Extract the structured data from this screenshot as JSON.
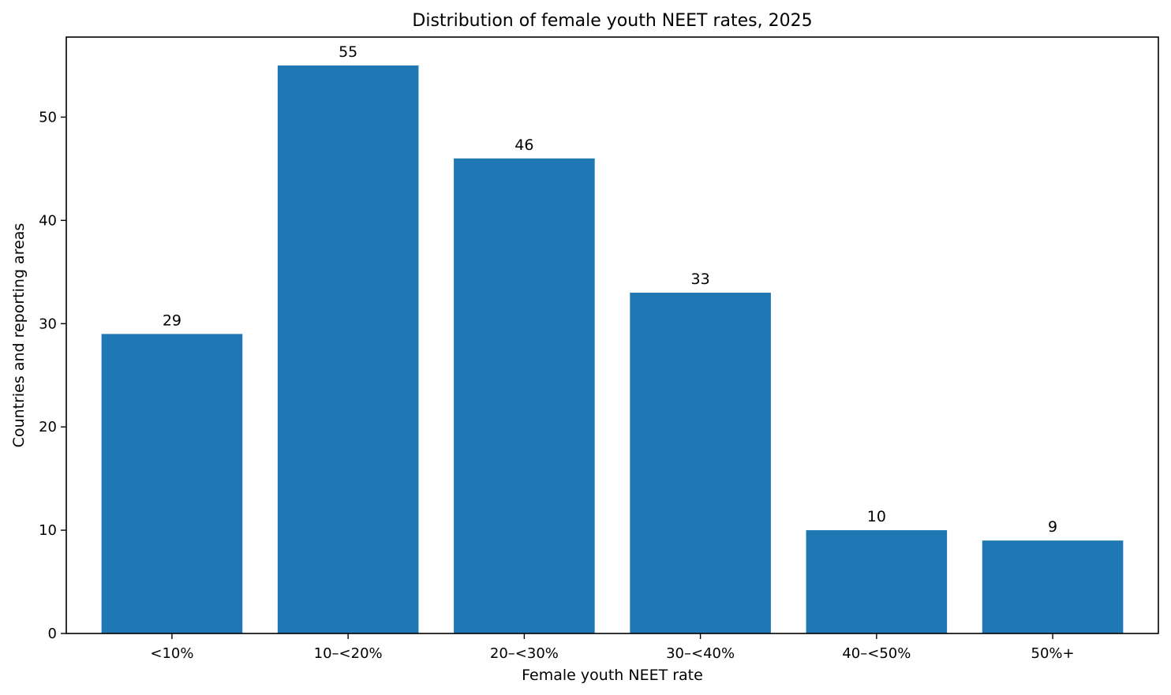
{
  "chart_data": {
    "type": "bar",
    "title": "Distribution of female youth NEET rates, 2025",
    "xlabel": "Female youth NEET rate",
    "ylabel": "Countries and reporting areas",
    "categories": [
      "<10%",
      "10–<20%",
      "20–<30%",
      "30–<40%",
      "40–<50%",
      "50%+"
    ],
    "values": [
      29,
      55,
      46,
      33,
      10,
      9
    ],
    "data_labels": [
      "29",
      "55",
      "46",
      "33",
      "10",
      "9"
    ],
    "yticks": [
      0,
      10,
      20,
      30,
      40,
      50
    ],
    "ylim": [
      0,
      57.75
    ],
    "grid": false,
    "legend": "none",
    "bar_color": "#1f77b4"
  }
}
